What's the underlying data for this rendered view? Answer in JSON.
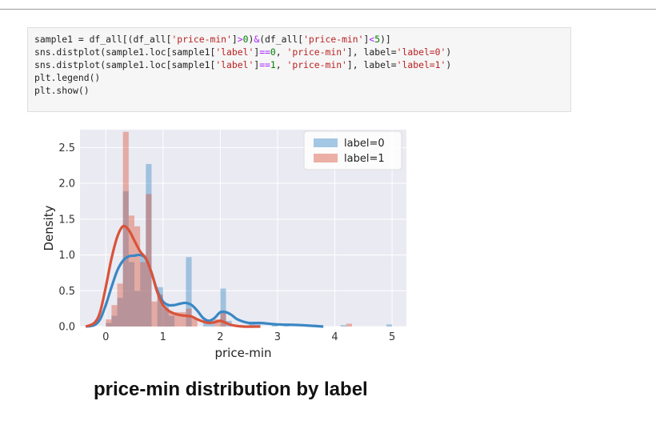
{
  "code_cell": {
    "lines": [
      [
        {
          "t": "sample1 = df_all[(df_all[",
          "c": ""
        },
        {
          "t": "'price-min'",
          "c": "str"
        },
        {
          "t": "]",
          "c": ""
        },
        {
          "t": ">",
          "c": "op"
        },
        {
          "t": "0",
          "c": "num"
        },
        {
          "t": ")",
          "c": ""
        },
        {
          "t": "&",
          "c": "op"
        },
        {
          "t": "(df_all[",
          "c": ""
        },
        {
          "t": "'price-min'",
          "c": "str"
        },
        {
          "t": "]",
          "c": ""
        },
        {
          "t": "<",
          "c": "op"
        },
        {
          "t": "5",
          "c": "num"
        },
        {
          "t": ")]",
          "c": ""
        }
      ],
      [
        {
          "t": "sns.distplot(sample1.loc[sample1[",
          "c": ""
        },
        {
          "t": "'label'",
          "c": "str"
        },
        {
          "t": "]",
          "c": ""
        },
        {
          "t": "==",
          "c": "op"
        },
        {
          "t": "0",
          "c": "num"
        },
        {
          "t": ", ",
          "c": ""
        },
        {
          "t": "'price-min'",
          "c": "str"
        },
        {
          "t": "], label=",
          "c": ""
        },
        {
          "t": "'label=0'",
          "c": "str"
        },
        {
          "t": ")",
          "c": ""
        }
      ],
      [
        {
          "t": "sns.distplot(sample1.loc[sample1[",
          "c": ""
        },
        {
          "t": "'label'",
          "c": "str"
        },
        {
          "t": "]",
          "c": ""
        },
        {
          "t": "==",
          "c": "op"
        },
        {
          "t": "1",
          "c": "num"
        },
        {
          "t": ", ",
          "c": ""
        },
        {
          "t": "'price-min'",
          "c": "str"
        },
        {
          "t": "], label=",
          "c": ""
        },
        {
          "t": "'label=1'",
          "c": "str"
        },
        {
          "t": ")",
          "c": ""
        }
      ],
      [
        {
          "t": "plt.legend()",
          "c": ""
        }
      ],
      [
        {
          "t": "plt.show()",
          "c": ""
        }
      ]
    ]
  },
  "chart_data": {
    "type": "bar",
    "xlabel": "price-min",
    "ylabel": "Density",
    "xlim": [
      -0.45,
      5.25
    ],
    "ylim": [
      0,
      2.75
    ],
    "xticks": [
      "0",
      "1",
      "2",
      "3",
      "4",
      "5"
    ],
    "yticks": [
      "0.0",
      "0.5",
      "1.0",
      "1.5",
      "2.0",
      "2.5"
    ],
    "grid": true,
    "legend_placement": "top-right",
    "bin_width": 0.1,
    "colors": {
      "label0": "#3a87c4",
      "label1": "#d9533a",
      "background": "#eaeaf2",
      "grid": "#ffffff"
    },
    "series": [
      {
        "name": "label=0",
        "hist_x": [
          0.05,
          0.15,
          0.25,
          0.35,
          0.45,
          0.55,
          0.65,
          0.75,
          0.95,
          1.05,
          1.15,
          1.45,
          1.75,
          1.85,
          2.05,
          2.15,
          2.55,
          2.65,
          2.95,
          3.15,
          3.45,
          3.65,
          4.15,
          4.95
        ],
        "hist_y": [
          0.05,
          0.15,
          0.4,
          1.89,
          0.9,
          0.5,
          1.0,
          2.27,
          0.55,
          0.3,
          0.15,
          0.97,
          0.1,
          0.1,
          0.53,
          0.08,
          0.07,
          0.03,
          0.03,
          0.03,
          0.03,
          0.02,
          0.02,
          0.03
        ],
        "kde_x": [
          -0.35,
          -0.2,
          -0.1,
          0.0,
          0.1,
          0.2,
          0.3,
          0.4,
          0.5,
          0.6,
          0.7,
          0.8,
          0.9,
          1.0,
          1.1,
          1.2,
          1.3,
          1.4,
          1.5,
          1.6,
          1.7,
          1.8,
          1.9,
          2.0,
          2.1,
          2.2,
          2.3,
          2.5,
          2.7,
          3.0,
          3.4,
          3.8
        ],
        "kde_y": [
          0.0,
          0.02,
          0.1,
          0.3,
          0.55,
          0.78,
          0.92,
          0.98,
          0.99,
          1.0,
          0.95,
          0.75,
          0.5,
          0.35,
          0.3,
          0.3,
          0.32,
          0.33,
          0.3,
          0.22,
          0.12,
          0.08,
          0.12,
          0.2,
          0.2,
          0.16,
          0.1,
          0.05,
          0.05,
          0.03,
          0.02,
          0.0
        ]
      },
      {
        "name": "label=1",
        "hist_x": [
          0.05,
          0.15,
          0.25,
          0.35,
          0.45,
          0.55,
          0.65,
          0.75,
          0.85,
          0.95,
          1.05,
          1.15,
          1.25,
          1.35,
          1.45,
          1.55,
          1.95,
          2.05,
          4.25
        ],
        "hist_y": [
          0.1,
          0.3,
          0.6,
          2.72,
          1.55,
          1.4,
          0.9,
          1.85,
          0.35,
          0.45,
          0.25,
          0.2,
          0.2,
          0.2,
          0.25,
          0.12,
          0.1,
          0.2,
          0.04
        ],
        "kde_x": [
          -0.35,
          -0.2,
          -0.1,
          0.0,
          0.1,
          0.2,
          0.3,
          0.4,
          0.5,
          0.6,
          0.7,
          0.8,
          0.9,
          1.0,
          1.1,
          1.2,
          1.3,
          1.4,
          1.5,
          1.6,
          1.7,
          1.8,
          1.9,
          2.0,
          2.1,
          2.2,
          2.4,
          2.7
        ],
        "kde_y": [
          0.0,
          0.05,
          0.2,
          0.55,
          0.95,
          1.25,
          1.4,
          1.35,
          1.2,
          1.05,
          0.95,
          0.75,
          0.48,
          0.3,
          0.22,
          0.18,
          0.16,
          0.15,
          0.14,
          0.1,
          0.07,
          0.05,
          0.06,
          0.08,
          0.05,
          0.02,
          0.0,
          0.0
        ]
      }
    ]
  },
  "caption": "price-min distribution by label"
}
